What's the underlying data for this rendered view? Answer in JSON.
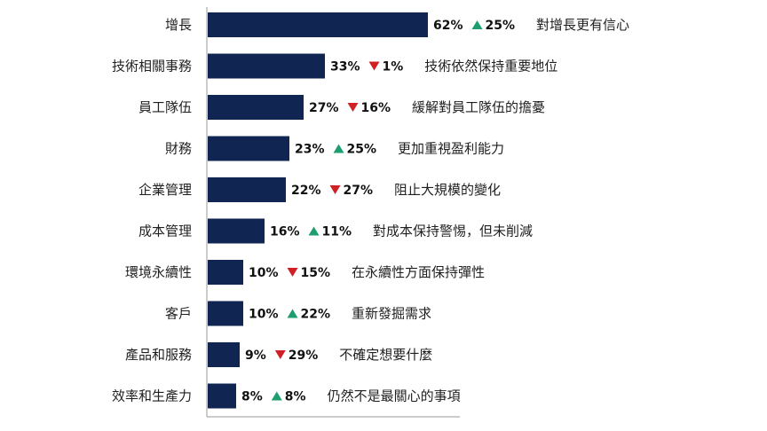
{
  "chart_data": {
    "type": "bar",
    "orientation": "horizontal",
    "title": "",
    "xlabel": "",
    "ylabel": "",
    "xlim": [
      0,
      100
    ],
    "grid": false,
    "legend": "none",
    "bar_color": "#112552",
    "up_color": "#1e9e6e",
    "down_color": "#d11f26",
    "categories": [
      "增長",
      "技術相關事務",
      "員工隊伍",
      "財務",
      "企業管理",
      "成本管理",
      "環境永續性",
      "客戶",
      "產品和服務",
      "效率和生產力"
    ],
    "values": [
      62,
      33,
      27,
      23,
      22,
      16,
      10,
      10,
      9,
      8
    ],
    "value_labels": [
      "62%",
      "33%",
      "27%",
      "23%",
      "22%",
      "16%",
      "10%",
      "10%",
      "9%",
      "8%"
    ],
    "changes": [
      {
        "direction": "up",
        "label": "25%"
      },
      {
        "direction": "down",
        "label": "1%"
      },
      {
        "direction": "down",
        "label": "16%"
      },
      {
        "direction": "up",
        "label": "25%"
      },
      {
        "direction": "down",
        "label": "27%"
      },
      {
        "direction": "up",
        "label": "11%"
      },
      {
        "direction": "down",
        "label": "15%"
      },
      {
        "direction": "up",
        "label": "22%"
      },
      {
        "direction": "down",
        "label": "29%"
      },
      {
        "direction": "up",
        "label": "8%"
      }
    ],
    "notes": [
      "對增長更有信心",
      "技術依然保持重要地位",
      "緩解對員工隊伍的擔憂",
      "更加重視盈利能力",
      "阻止大規模的變化",
      "對成本保持警惕，但未削減",
      "在永續性方面保持彈性",
      "重新發掘需求",
      "不確定想要什麼",
      "仍然不是最關心的事項"
    ]
  }
}
